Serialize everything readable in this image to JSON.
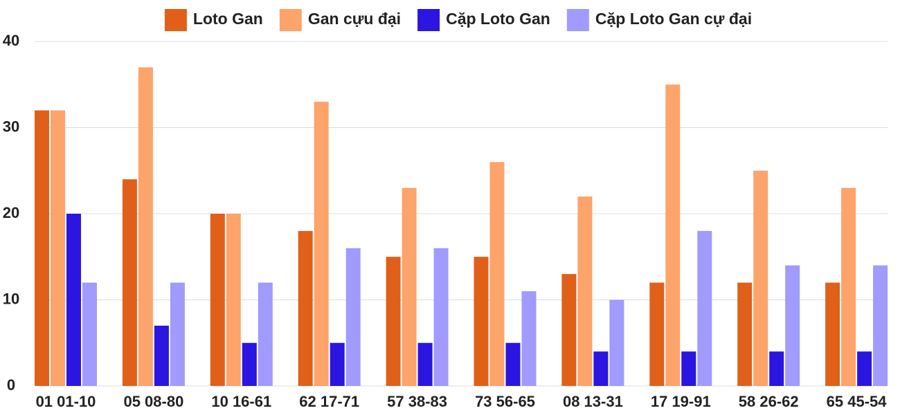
{
  "chart_data": {
    "type": "bar",
    "categories": [
      "01 01-10",
      "05 08-80",
      "10 16-61",
      "62 17-71",
      "57 38-83",
      "73 56-65",
      "08 13-31",
      "17 19-91",
      "58 26-62",
      "65 45-54"
    ],
    "series": [
      {
        "name": "Loto Gan",
        "color": "#e0601a",
        "values": [
          32,
          24,
          20,
          18,
          15,
          15,
          13,
          12,
          12,
          12
        ]
      },
      {
        "name": "Gan cựu đại",
        "color": "#fda46a",
        "values": [
          32,
          37,
          20,
          33,
          23,
          26,
          22,
          35,
          25,
          23
        ]
      },
      {
        "name": "Cặp Loto Gan",
        "color": "#2a16e0",
        "values": [
          20,
          7,
          5,
          5,
          5,
          5,
          4,
          4,
          4,
          4
        ]
      },
      {
        "name": "Cặp Loto Gan cự đại",
        "color": "#a09bfd",
        "values": [
          12,
          12,
          12,
          16,
          16,
          11,
          10,
          18,
          14,
          14
        ]
      }
    ],
    "ylim": [
      0,
      40
    ],
    "yticks": [
      0,
      10,
      20,
      30,
      40
    ],
    "grid": true,
    "legend": "top"
  }
}
